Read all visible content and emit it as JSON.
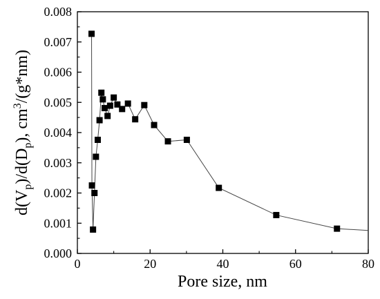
{
  "chart_data": {
    "type": "line",
    "title": "",
    "xlabel": "Pore size, nm",
    "ylabel": "d(Vp)/d(Dp), cm3/(g*nm)",
    "ylabel_parts": {
      "a": "d(V",
      "a_sub": "p",
      "b": ")/d(D",
      "b_sub": "p",
      "c": "), cm",
      "c_sup": "3",
      "d": "/(g*nm)"
    },
    "xlim": [
      0,
      80
    ],
    "ylim": [
      0,
      0.008
    ],
    "x_ticks": [
      0,
      20,
      40,
      60,
      80
    ],
    "y_ticks": [
      0,
      0.001,
      0.002,
      0.003,
      0.004,
      0.005,
      0.006,
      0.007,
      0.008
    ],
    "x_tick_labels": [
      "0",
      "20",
      "40",
      "60",
      "80"
    ],
    "y_tick_labels": [
      "0.000",
      "0.001",
      "0.002",
      "0.003",
      "0.004",
      "0.005",
      "0.006",
      "0.007",
      "0.008"
    ],
    "grid": false,
    "legend": false,
    "marker": "square",
    "series": [
      {
        "line_color": "#444444",
        "marker_color": "#000000",
        "x": [
          3.9,
          4.0,
          4.3,
          4.7,
          5.1,
          5.6,
          6.1,
          6.6,
          7.0,
          7.5,
          8.3,
          9.0,
          10.0,
          11.0,
          12.3,
          13.9,
          15.9,
          18.4,
          21.1,
          24.9,
          30.1,
          38.9,
          54.7,
          71.4,
          80.0
        ],
        "y": [
          0.00727,
          0.00225,
          0.00079,
          0.002,
          0.0032,
          0.00376,
          0.00441,
          0.00532,
          0.0051,
          0.00481,
          0.00455,
          0.00489,
          0.00516,
          0.00493,
          0.00478,
          0.00496,
          0.00444,
          0.00491,
          0.00425,
          0.00371,
          0.00376,
          0.00217,
          0.00127,
          0.00082,
          0.00076
        ],
        "markers": [
          true,
          true,
          true,
          true,
          true,
          true,
          true,
          true,
          true,
          true,
          true,
          true,
          true,
          true,
          true,
          true,
          true,
          true,
          true,
          true,
          true,
          true,
          true,
          true,
          false
        ]
      }
    ]
  }
}
